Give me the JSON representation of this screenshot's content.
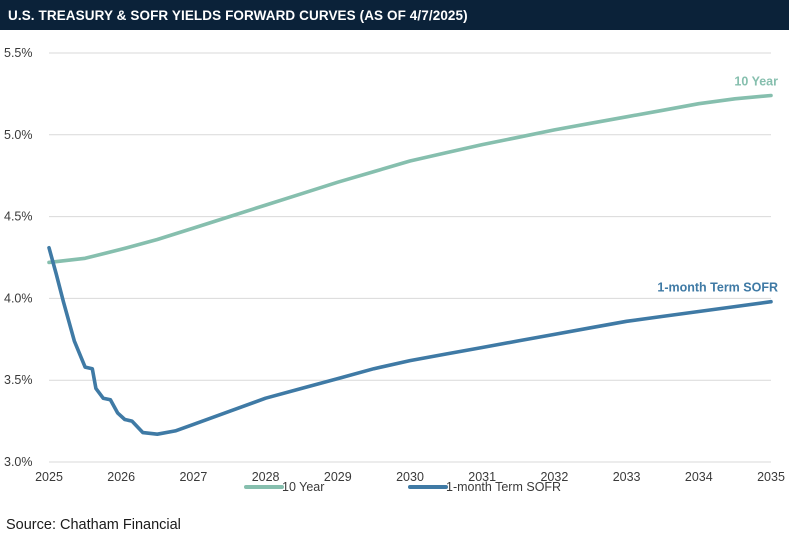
{
  "chart_data": {
    "type": "line",
    "title": "U.S. TREASURY & SOFR YIELDS FORWARD CURVES (AS OF 4/7/2025)",
    "xlabel": "",
    "ylabel": "",
    "xlim": [
      2025,
      2035
    ],
    "ylim": [
      3.0,
      5.5
    ],
    "x_ticks": [
      "2025",
      "2026",
      "2027",
      "2028",
      "2029",
      "2030",
      "2031",
      "2032",
      "2033",
      "2034",
      "2035"
    ],
    "y_ticks": [
      {
        "value": 3.0,
        "label": "3.0%"
      },
      {
        "value": 3.5,
        "label": "3.5%"
      },
      {
        "value": 4.0,
        "label": "4.0%"
      },
      {
        "value": 4.5,
        "label": "4.5%"
      },
      {
        "value": 5.0,
        "label": "5.0%"
      },
      {
        "value": 5.5,
        "label": "5.5%"
      }
    ],
    "grid": "horizontal",
    "legend_position": "bottom",
    "series": [
      {
        "name": "10 Year",
        "color": "#86bfae",
        "x": [
          2025.0,
          2025.5,
          2026.0,
          2026.5,
          2027.0,
          2027.5,
          2028.0,
          2028.5,
          2029.0,
          2029.5,
          2030.0,
          2030.5,
          2031.0,
          2031.5,
          2032.0,
          2032.5,
          2033.0,
          2033.5,
          2034.0,
          2034.5,
          2035.0
        ],
        "y": [
          4.22,
          4.245,
          4.3,
          4.36,
          4.43,
          4.5,
          4.57,
          4.64,
          4.71,
          4.775,
          4.84,
          4.89,
          4.94,
          4.985,
          5.03,
          5.07,
          5.11,
          5.15,
          5.19,
          5.22,
          5.24
        ]
      },
      {
        "name": "1-month Term SOFR",
        "color": "#3f7aa5",
        "x": [
          2025.0,
          2025.1,
          2025.2,
          2025.35,
          2025.5,
          2025.6,
          2025.65,
          2025.75,
          2025.85,
          2025.95,
          2026.05,
          2026.15,
          2026.3,
          2026.5,
          2026.75,
          2027.0,
          2027.5,
          2028.0,
          2028.5,
          2029.0,
          2029.5,
          2030.0,
          2030.5,
          2031.0,
          2031.5,
          2032.0,
          2032.5,
          2033.0,
          2033.5,
          2034.0,
          2034.5,
          2035.0
        ],
        "y": [
          4.31,
          4.15,
          3.98,
          3.74,
          3.58,
          3.57,
          3.45,
          3.39,
          3.38,
          3.3,
          3.26,
          3.25,
          3.18,
          3.17,
          3.19,
          3.23,
          3.31,
          3.39,
          3.45,
          3.51,
          3.57,
          3.62,
          3.66,
          3.7,
          3.74,
          3.78,
          3.82,
          3.86,
          3.89,
          3.92,
          3.95,
          3.98
        ]
      }
    ]
  },
  "source": "Source: Chatham Financial"
}
